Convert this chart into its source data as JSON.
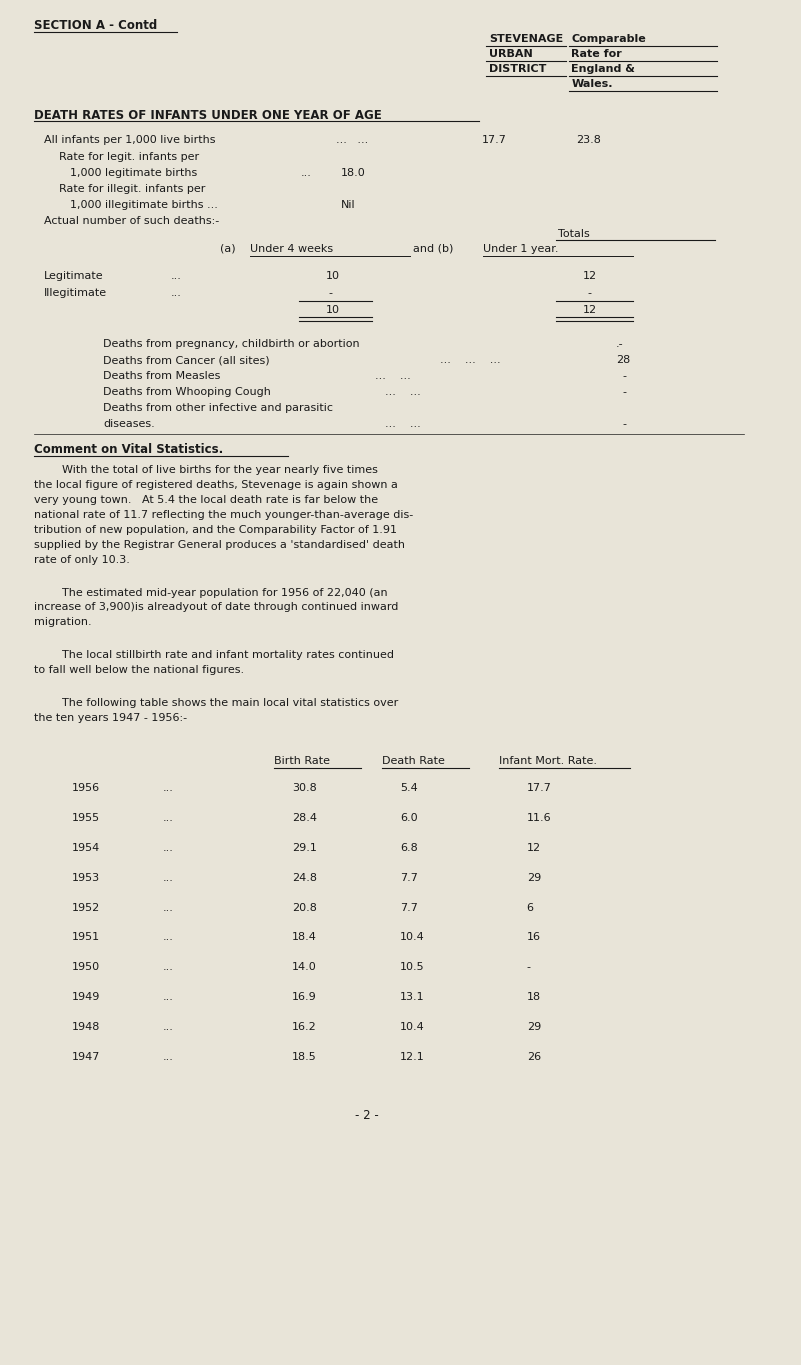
{
  "bg_color": "#e8e4d8",
  "text_color": "#1a1a1a",
  "font_family": "Courier New",
  "page_width": 8.01,
  "page_height": 13.65,
  "section_header": "SECTION A - Contd",
  "col_header1": "STEVENAGE",
  "col_header2": "Comparable",
  "col_header3": "URBAN",
  "col_header4": "Rate for",
  "col_header5": "DISTRICT",
  "col_header6": "England &",
  "col_header7": "Wales.",
  "section_title": "DEATH RATES OF INFANTS UNDER ONE YEAR OF AGE",
  "totals_label": "Totals",
  "legit_label": "Legitimate",
  "illegit_label": "Illegitimate",
  "comment_header": "Comment on Vital Statistics.",
  "para1_lines": [
    "        With the total of live births for the year nearly five times",
    "the local figure of registered deaths, Stevenage is again shown a",
    "very young town.   At 5.4 the local death rate is far below the",
    "national rate of 11.7 reflecting the much younger-than-average dis-",
    "tribution of new population, and the Comparability Factor of 1.91",
    "supplied by the Registrar General produces a 'standardised' death",
    "rate of only 10.3."
  ],
  "para2_lines": [
    "        The estimated mid-year population for 1956 of 22,040 (an",
    "increase of 3,900)is alreadyout of date through continued inward",
    "migration."
  ],
  "para3_lines": [
    "        The local stillbirth rate and infant mortality rates continued",
    "to fall well below the national figures."
  ],
  "para4_lines": [
    "        The following table shows the main local vital statistics over",
    "the ten years 1947 - 1956:-"
  ],
  "table_header_birth": "Birth Rate",
  "table_header_death": "Death Rate",
  "table_header_infant": "Infant Mort. Rate.",
  "table_data": [
    [
      "1956",
      "...",
      "30.8",
      "5.4",
      "17.7"
    ],
    [
      "1955",
      "...",
      "28.4",
      "6.0",
      "11.6"
    ],
    [
      "1954",
      "...",
      "29.1",
      "6.8",
      "12"
    ],
    [
      "1953",
      "...",
      "24.8",
      "7.7",
      "29"
    ],
    [
      "1952",
      "...",
      "20.8",
      "7.7",
      "6"
    ],
    [
      "1951",
      "...",
      "18.4",
      "10.4",
      "16"
    ],
    [
      "1950",
      "...",
      "14.0",
      "10.5",
      "-"
    ],
    [
      "1949",
      "...",
      "16.9",
      "13.1",
      "18"
    ],
    [
      "1948",
      "...",
      "16.2",
      "10.4",
      "29"
    ],
    [
      "1947",
      "...",
      "18.5",
      "12.1",
      "26"
    ]
  ],
  "page_number": "- 2 -"
}
